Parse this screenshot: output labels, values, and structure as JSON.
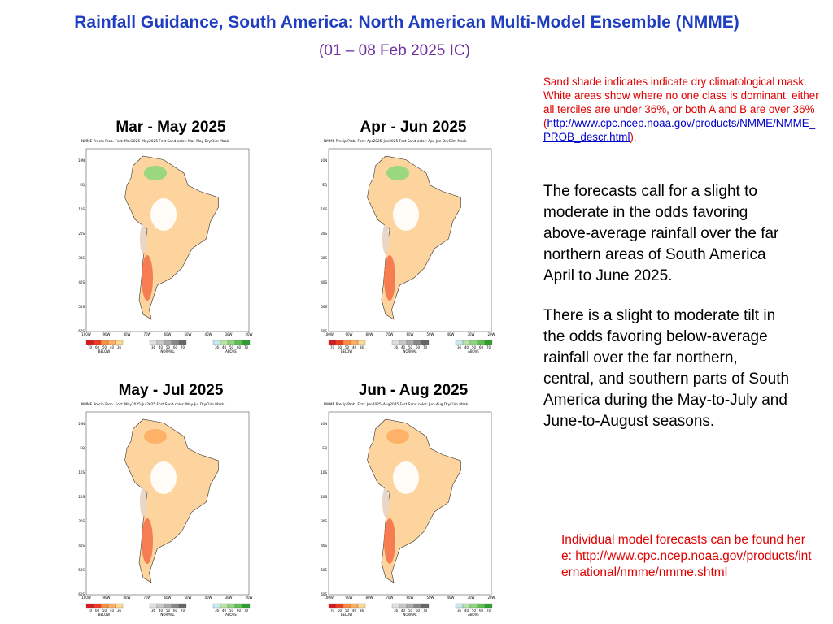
{
  "header": {
    "title": "Rainfall Guidance, South America:  North American Multi-Model Ensemble (NMME)",
    "subtitle": "(01 – 08 Feb 2025 IC)"
  },
  "note": {
    "text": "Sand shade indicates indicate dry climatological mask. White areas show where no one class is dominant: either all terciles are under 36%, or both A and B are over 36%",
    "open": "(",
    "link": "http://www.cpc.ncep.noaa.gov/products/NMME/NMME_PROB_descr.html",
    "close": ")."
  },
  "paragraphs": [
    "The forecasts call for a slight to moderate in the odds favoring above-average rainfall over the far northern areas of South America April to June 2025.",
    "There is a slight to moderate tilt in the odds favoring below-average rainfall over the far northern, central, and southern parts of South America during the May-to-July and June-to-August seasons."
  ],
  "footer_note": "Individual model forecasts can be found here: http://www.cpc.ncep.noaa.gov/products/international/nmme/nmme.shtml",
  "panels": [
    {
      "title": "Mar - May 2025",
      "map_header": "NMME Precip Prob. Fcst:  Mar2025–May2025 Fcst    Sand color: Mar–May DryClim Mask"
    },
    {
      "title": "Apr - Jun 2025",
      "map_header": "NMME Precip Prob. Fcst:  Apr2025–Jun2025 Fcst    Sand color: Apr–Jun DryClim Mask"
    },
    {
      "title": "May - Jul 2025",
      "map_header": "NMME Precip Prob. Fcst:  May2025–Jul2025 Fcst    Sand color: May–Jul DryClim Mask"
    },
    {
      "title": "Jun - Aug 2025",
      "map_header": "NMME Precip Prob. Fcst:  Jun2025–Aug2025 Fcst    Sand color: Jun–Aug DryClim Mask"
    }
  ],
  "map_axes": {
    "lat_labels": [
      "10N",
      "EQ",
      "10S",
      "20S",
      "30S",
      "40S",
      "50S",
      "60S"
    ],
    "lon_labels": [
      "100W",
      "90W",
      "80W",
      "70W",
      "60W",
      "50W",
      "40W",
      "30W",
      "20W"
    ]
  },
  "legend": [
    {
      "name": "BELOW",
      "ticks": [
        "70",
        "60",
        "50",
        "40",
        "36"
      ],
      "colors": [
        "#d7191c",
        "#f03b20",
        "#fd8d3c",
        "#fdae61",
        "#fed98e"
      ]
    },
    {
      "name": "NORMAL",
      "ticks": [
        "36",
        "40",
        "50",
        "60",
        "70"
      ],
      "colors": [
        "#e0e0e0",
        "#c8c8c8",
        "#aaaaaa",
        "#888888",
        "#666666"
      ]
    },
    {
      "name": "ABOVE",
      "ticks": [
        "36",
        "40",
        "50",
        "60",
        "70"
      ],
      "colors": [
        "#c7e9f0",
        "#b8e6a8",
        "#8fd77a",
        "#5cc152",
        "#2ca02c"
      ]
    }
  ]
}
